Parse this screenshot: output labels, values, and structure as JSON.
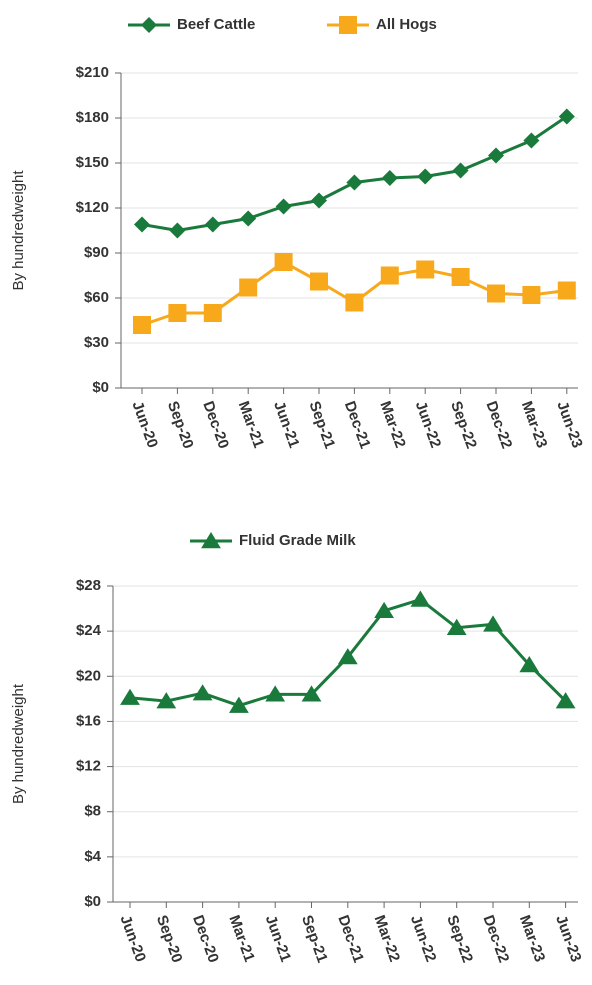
{
  "chart_data": [
    {
      "type": "line",
      "ylabel": "By hundredweight",
      "categories": [
        "Jun-20",
        "Sep-20",
        "Dec-20",
        "Mar-21",
        "Jun-21",
        "Sep-21",
        "Dec-21",
        "Mar-22",
        "Jun-22",
        "Sep-22",
        "Dec-22",
        "Mar-23",
        "Jun-23"
      ],
      "series": [
        {
          "name": "Beef Cattle",
          "color": "#1a7a3c",
          "marker": "diamond",
          "values": [
            109,
            105,
            109,
            113,
            121,
            125,
            137,
            140,
            141,
            145,
            155,
            165,
            181
          ]
        },
        {
          "name": "All Hogs",
          "color": "#f7a81b",
          "marker": "square",
          "values": [
            42,
            50,
            50,
            67,
            84,
            71,
            57,
            75,
            79,
            74,
            63,
            62,
            65
          ]
        }
      ],
      "ylim": [
        0,
        210
      ],
      "yticks": [
        {
          "value": 0,
          "label": "$0"
        },
        {
          "value": 30,
          "label": "$30"
        },
        {
          "value": 60,
          "label": "$60"
        },
        {
          "value": 90,
          "label": "$90"
        },
        {
          "value": 120,
          "label": "$120"
        },
        {
          "value": 150,
          "label": "$150"
        },
        {
          "value": 180,
          "label": "$180"
        },
        {
          "value": 210,
          "label": "$210"
        }
      ],
      "grid": true,
      "legend": "top"
    },
    {
      "type": "line",
      "ylabel": "By hundredweight",
      "categories": [
        "Jun-20",
        "Sep-20",
        "Dec-20",
        "Mar-21",
        "Jun-21",
        "Sep-21",
        "Dec-21",
        "Mar-22",
        "Jun-22",
        "Sep-22",
        "Dec-22",
        "Mar-23",
        "Jun-23"
      ],
      "series": [
        {
          "name": "Fluid Grade Milk",
          "color": "#1a7a3c",
          "marker": "triangle",
          "values": [
            18.1,
            17.8,
            18.5,
            17.4,
            18.4,
            18.4,
            21.7,
            25.8,
            26.8,
            24.3,
            24.6,
            21.0,
            17.8
          ]
        }
      ],
      "ylim": [
        0,
        28
      ],
      "yticks": [
        {
          "value": 0,
          "label": "$0"
        },
        {
          "value": 4,
          "label": "$4"
        },
        {
          "value": 8,
          "label": "$8"
        },
        {
          "value": 12,
          "label": "$12"
        },
        {
          "value": 16,
          "label": "$16"
        },
        {
          "value": 20,
          "label": "$20"
        },
        {
          "value": 24,
          "label": "$24"
        },
        {
          "value": 28,
          "label": "$28"
        }
      ],
      "grid": true,
      "legend": "top"
    }
  ]
}
